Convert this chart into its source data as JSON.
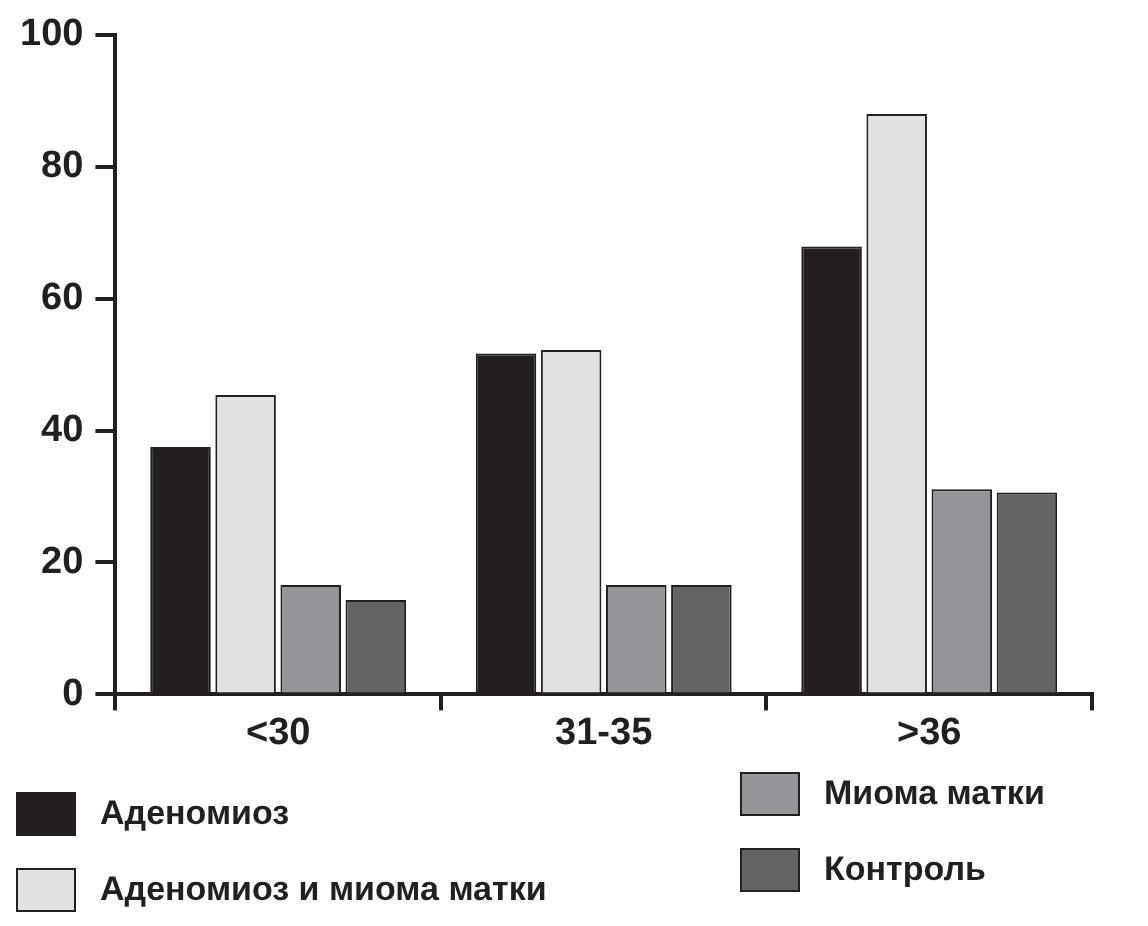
{
  "chart_data": {
    "type": "bar",
    "categories": [
      "<30",
      "31-35",
      ">36"
    ],
    "series": [
      {
        "name": "Аденомиоз",
        "color": "#231f20",
        "values": [
          37.5,
          51.7,
          67.9
        ]
      },
      {
        "name": "Аденомиоз и миома матки",
        "color": "#e0e1e3",
        "values": [
          45.4,
          52.2,
          88
        ]
      },
      {
        "name": "Миома матки",
        "color": "#939598",
        "values": [
          16.6,
          16.6,
          31.1
        ]
      },
      {
        "name": "Контроль",
        "color": "#636466",
        "values": [
          14.3,
          16.6,
          30.6
        ]
      }
    ],
    "ylim": [
      0,
      100
    ],
    "yticks": [
      0,
      20,
      40,
      60,
      80,
      100
    ],
    "grid": false,
    "legend": "bottom"
  }
}
